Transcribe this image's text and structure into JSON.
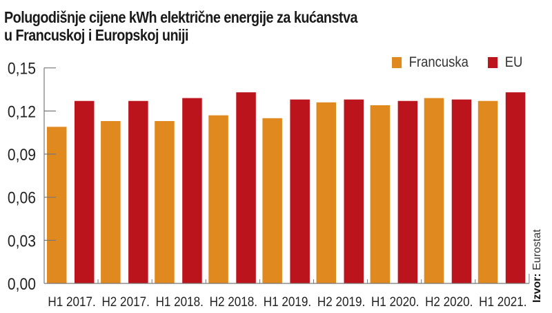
{
  "chart_data": {
    "type": "bar",
    "title": "Polugodišnje cijene kWh električne energije za kućanstva u Francuskoj i Europskoj uniji",
    "title_lines": [
      "Polugodišnje cijene kWh električne energije za kućanstva",
      "u Francuskoj i Europskoj uniji"
    ],
    "xlabel": "",
    "ylabel": "",
    "categories": [
      "H1 2017.",
      "H2 2017.",
      "H1 2018.",
      "H2 2018.",
      "H1 2019.",
      "H2 2019.",
      "H1 2020.",
      "H2 2020.",
      "H1 2021."
    ],
    "series": [
      {
        "name": "Francuska",
        "color": "#e0891e",
        "values": [
          0.109,
          0.113,
          0.113,
          0.117,
          0.115,
          0.126,
          0.124,
          0.129,
          0.127
        ]
      },
      {
        "name": "EU",
        "color": "#bb141c",
        "values": [
          0.127,
          0.127,
          0.129,
          0.133,
          0.128,
          0.128,
          0.127,
          0.128,
          0.133
        ]
      }
    ],
    "ylim": [
      0,
      0.15
    ],
    "yticks": [
      0,
      0.03,
      0.06,
      0.09,
      0.12,
      0.15
    ],
    "ytick_labels": [
      "0,00",
      "0,03",
      "0,06",
      "0,09",
      "0,12",
      "0,15"
    ],
    "grid": false,
    "legend_position": "top-right",
    "source_label": "Izvor:",
    "source_value": "Eurostat"
  }
}
